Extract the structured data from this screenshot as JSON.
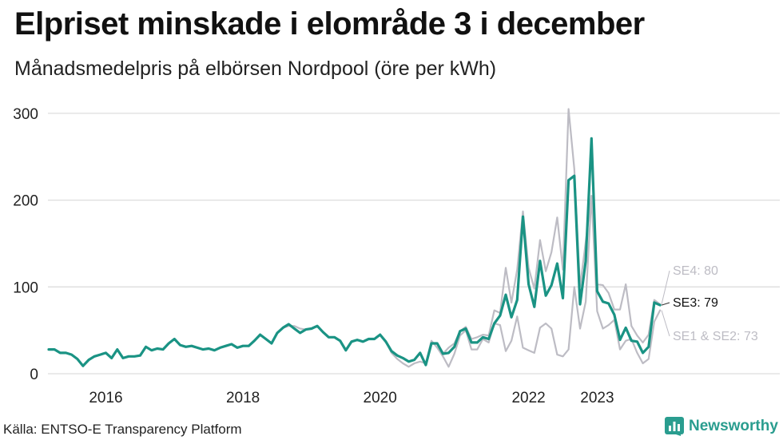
{
  "title": "Elpriset minskade i elområde 3 i december",
  "subtitle": "Månadsmedelpris på elbörsen Nordpool (öre per kWh)",
  "source": "Källa: ENTSO-E Transparency Platform",
  "brand": "Newsworthy",
  "colors": {
    "se3": "#1a9384",
    "other": "#bdbcc4",
    "grid": "#dddddd",
    "brand": "#2a9d8f"
  },
  "chart_data": {
    "type": "line",
    "title": "Elpriset minskade i elområde 3 i december",
    "xlabel": "",
    "ylabel": "öre per kWh",
    "ylim": [
      0,
      310
    ],
    "yticks": [
      0,
      100,
      200,
      300
    ],
    "xticks": [
      {
        "label": "2016",
        "index": 10
      },
      {
        "label": "2018",
        "index": 34
      },
      {
        "label": "2020",
        "index": 58
      },
      {
        "label": "2022",
        "index": 84
      },
      {
        "label": "2023",
        "index": 96
      }
    ],
    "start": "2015-01",
    "series": [
      {
        "name": "SE3",
        "label": "SE3: 79",
        "values": [
          28,
          28,
          24,
          24,
          22,
          17,
          9,
          16,
          20,
          22,
          24,
          18,
          28,
          18,
          20,
          20,
          21,
          31,
          27,
          29,
          28,
          35,
          40,
          33,
          31,
          32,
          30,
          28,
          29,
          27,
          30,
          32,
          34,
          30,
          32,
          32,
          38,
          45,
          40,
          35,
          47,
          53,
          57,
          52,
          47,
          51,
          52,
          55,
          48,
          42,
          42,
          38,
          27,
          37,
          39,
          37,
          40,
          40,
          45,
          37,
          26,
          21,
          18,
          14,
          16,
          24,
          10,
          35,
          35,
          23,
          24,
          31,
          49,
          52,
          36,
          36,
          42,
          40,
          58,
          67,
          91,
          65,
          85,
          181,
          103,
          77,
          130,
          90,
          102,
          127,
          87,
          223,
          228,
          80,
          130,
          271,
          95,
          83,
          81,
          68,
          39,
          53,
          38,
          37,
          24,
          31,
          82,
          79
        ]
      },
      {
        "name": "SE4",
        "label": "SE4: 80",
        "values": [
          28,
          28,
          24,
          24,
          22,
          17,
          9,
          16,
          20,
          22,
          24,
          18,
          28,
          18,
          20,
          20,
          21,
          31,
          27,
          29,
          28,
          35,
          40,
          33,
          31,
          32,
          30,
          28,
          29,
          27,
          30,
          32,
          34,
          30,
          32,
          32,
          38,
          45,
          40,
          35,
          47,
          53,
          57,
          52,
          47,
          51,
          52,
          55,
          48,
          42,
          42,
          38,
          27,
          37,
          39,
          37,
          40,
          40,
          45,
          37,
          26,
          21,
          18,
          14,
          16,
          24,
          10,
          35,
          35,
          23,
          30,
          35,
          49,
          54,
          40,
          42,
          45,
          44,
          73,
          70,
          122,
          82,
          120,
          187,
          122,
          98,
          154,
          118,
          140,
          180,
          120,
          305,
          236,
          100,
          152,
          205,
          103,
          102,
          93,
          74,
          74,
          103,
          55,
          44,
          36,
          45,
          85,
          80
        ]
      },
      {
        "name": "SE1 & SE2",
        "label": "SE1 & SE2: 73",
        "values": [
          28,
          28,
          24,
          24,
          22,
          17,
          9,
          16,
          20,
          22,
          24,
          18,
          28,
          18,
          20,
          20,
          21,
          31,
          27,
          29,
          28,
          35,
          40,
          33,
          31,
          32,
          30,
          28,
          29,
          27,
          30,
          32,
          34,
          30,
          32,
          32,
          38,
          45,
          40,
          35,
          47,
          53,
          55,
          55,
          52,
          51,
          52,
          55,
          48,
          42,
          42,
          38,
          27,
          37,
          39,
          37,
          40,
          40,
          45,
          37,
          24,
          17,
          12,
          8,
          12,
          14,
          12,
          38,
          30,
          20,
          8,
          23,
          44,
          50,
          28,
          28,
          40,
          36,
          58,
          56,
          26,
          38,
          66,
          30,
          27,
          24,
          53,
          58,
          52,
          22,
          20,
          28,
          100,
          52,
          83,
          205,
          72,
          52,
          56,
          62,
          28,
          38,
          40,
          24,
          12,
          17,
          60,
          73
        ]
      }
    ]
  }
}
